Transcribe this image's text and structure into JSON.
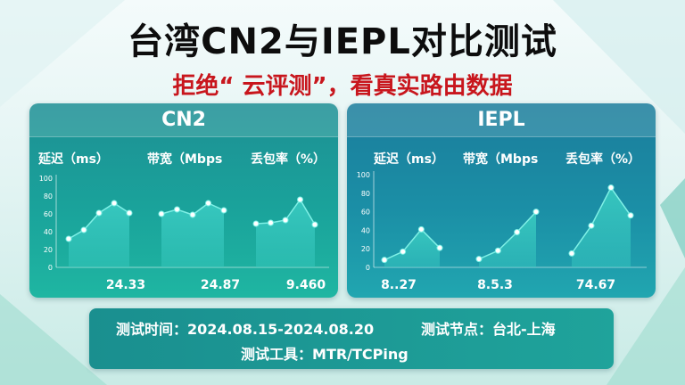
{
  "title": "台湾CN2与IEPL对比测试",
  "subtitle": "拒绝“ 云评测”，看真实路由数据",
  "panels": [
    {
      "name": "CN2",
      "metrics": [
        {
          "label": "延迟（ms）",
          "value_label": "24.33"
        },
        {
          "label": "带宽（Mbps",
          "value_label": "24.87"
        },
        {
          "label": "丢包率（%）",
          "value_label": "9.460"
        }
      ]
    },
    {
      "name": "IEPL",
      "metrics": [
        {
          "label": "延迟（ms）",
          "value_label": "8..27"
        },
        {
          "label": "带宽（Mbps",
          "value_label": "8.5.3"
        },
        {
          "label": "丢包率（%）",
          "value_label": "74.67"
        }
      ]
    }
  ],
  "info": {
    "period_label": "测试时间：",
    "period_value": "2024.08.15-2024.08.20",
    "node_label": "测试节点：",
    "node_value": "台北-上海",
    "tool_label": "测试工具：",
    "tool_value": "MTR/TCPing"
  },
  "chart_data": [
    {
      "type": "area",
      "title": "CN2",
      "ylim": [
        0,
        100
      ],
      "yticks": [
        0,
        20,
        40,
        60,
        80,
        100
      ],
      "grid": false,
      "charts": [
        {
          "name": "延迟（ms）",
          "values": [
            32,
            42,
            61,
            72,
            61
          ]
        },
        {
          "name": "带宽（Mbps",
          "values": [
            60,
            65,
            59,
            72,
            64
          ]
        },
        {
          "name": "丢包率（%）",
          "values": [
            49,
            50,
            53,
            76,
            48
          ]
        }
      ]
    },
    {
      "type": "area",
      "title": "IEPL",
      "ylim": [
        0,
        100
      ],
      "yticks": [
        0,
        20,
        40,
        60,
        80,
        100
      ],
      "grid": false,
      "charts": [
        {
          "name": "延迟（ms）",
          "values": [
            8,
            17,
            41,
            21
          ]
        },
        {
          "name": "带宽（Mbps",
          "values": [
            9,
            18,
            38,
            60
          ]
        },
        {
          "name": "丢包率（%）",
          "values": [
            15,
            45,
            86,
            56
          ]
        }
      ]
    }
  ],
  "colors": {
    "title": "#0d0d0d",
    "subtitle": "#c8161d",
    "cn2_panel": "#1a9d98",
    "iepl_panel": "#1b8aa4",
    "area_fill": "#38c9c0",
    "line": "#7ff0e6",
    "point": "#ffffff"
  }
}
